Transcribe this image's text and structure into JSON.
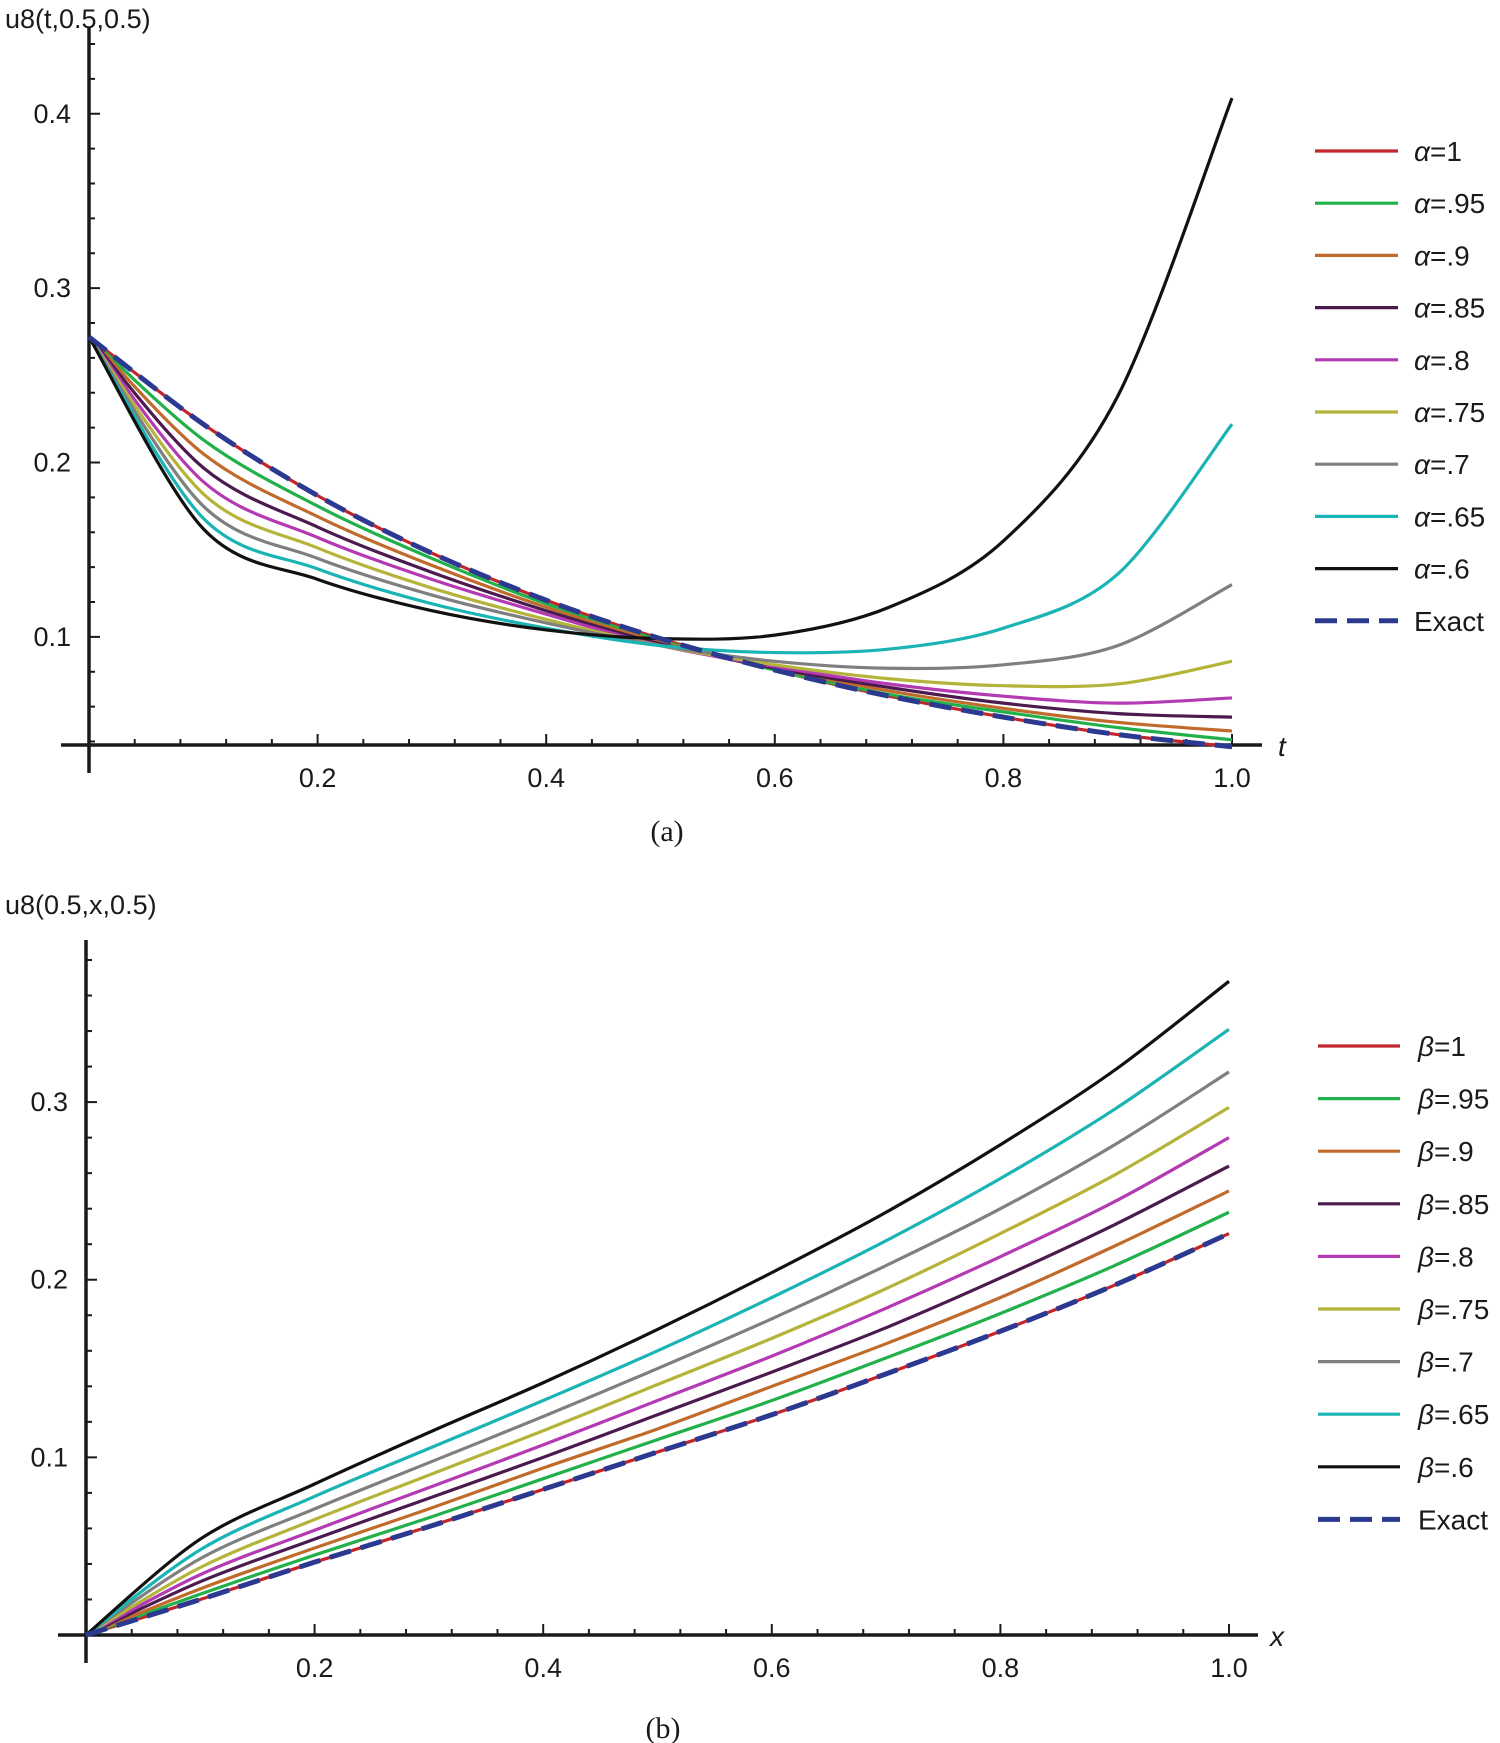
{
  "chart_data": [
    {
      "type": "line",
      "caption": "(a)",
      "ylabel": "u8(t,0.5,0.5)",
      "xlabel": "t",
      "xlim": [
        0,
        1.0
      ],
      "ylim": [
        0.038,
        0.44
      ],
      "xticks": [
        "0.2",
        "0.4",
        "0.6",
        "0.8",
        "1.0"
      ],
      "yticks": [
        "0.1",
        "0.2",
        "0.3",
        "0.4"
      ],
      "legend_position": "right",
      "x": [
        0,
        0.1,
        0.2,
        0.3,
        0.4,
        0.5,
        0.6,
        0.7,
        0.8,
        0.9,
        1.0
      ],
      "series": [
        {
          "name": "α=1",
          "color": "#c0272d",
          "dash": false,
          "values": [
            0.272,
            0.222,
            0.181,
            0.148,
            0.121,
            0.099,
            0.081,
            0.066,
            0.054,
            0.044,
            0.037
          ]
        },
        {
          "name": "α=.95",
          "color": "#22b04b",
          "dash": false,
          "values": [
            0.272,
            0.213,
            0.175,
            0.145,
            0.119,
            0.098,
            0.081,
            0.067,
            0.057,
            0.048,
            0.041
          ]
        },
        {
          "name": "α=.9",
          "color": "#c06a2b",
          "dash": false,
          "values": [
            0.272,
            0.205,
            0.169,
            0.141,
            0.117,
            0.097,
            0.082,
            0.069,
            0.059,
            0.051,
            0.046
          ]
        },
        {
          "name": "α=.85",
          "color": "#4b1a4f",
          "dash": false,
          "values": [
            0.272,
            0.197,
            0.163,
            0.137,
            0.115,
            0.096,
            0.082,
            0.071,
            0.062,
            0.056,
            0.054
          ]
        },
        {
          "name": "α=.8",
          "color": "#b33ab3",
          "dash": false,
          "values": [
            0.272,
            0.189,
            0.157,
            0.133,
            0.113,
            0.095,
            0.083,
            0.073,
            0.066,
            0.062,
            0.065
          ]
        },
        {
          "name": "α=.75",
          "color": "#b4b43a",
          "dash": false,
          "values": [
            0.272,
            0.182,
            0.151,
            0.128,
            0.11,
            0.095,
            0.084,
            0.076,
            0.072,
            0.073,
            0.086
          ]
        },
        {
          "name": "α=.7",
          "color": "#7f7f7f",
          "dash": false,
          "values": [
            0.272,
            0.175,
            0.145,
            0.124,
            0.108,
            0.095,
            0.086,
            0.082,
            0.084,
            0.095,
            0.13
          ]
        },
        {
          "name": "α=.65",
          "color": "#1ab4b4",
          "dash": false,
          "values": [
            0.272,
            0.168,
            0.139,
            0.119,
            0.105,
            0.095,
            0.091,
            0.093,
            0.105,
            0.136,
            0.222
          ]
        },
        {
          "name": "α=.6",
          "color": "#111111",
          "dash": false,
          "values": [
            0.272,
            0.162,
            0.133,
            0.115,
            0.104,
            0.099,
            0.101,
            0.117,
            0.155,
            0.238,
            0.409
          ]
        },
        {
          "name": "Exact",
          "color": "#2b3990",
          "dash": true,
          "values": [
            0.272,
            0.222,
            0.181,
            0.148,
            0.121,
            0.099,
            0.081,
            0.066,
            0.054,
            0.044,
            0.037
          ]
        }
      ]
    },
    {
      "type": "line",
      "caption": "(b)",
      "ylabel": "u8(0.5,x,0.5)",
      "xlabel": "x",
      "xlim": [
        0,
        1.0
      ],
      "ylim": [
        0,
        0.38
      ],
      "xticks": [
        "0.2",
        "0.4",
        "0.6",
        "0.8",
        "1.0"
      ],
      "yticks": [
        "0.1",
        "0.2",
        "0.3"
      ],
      "legend_position": "right",
      "x": [
        0,
        0.1,
        0.2,
        0.3,
        0.4,
        0.5,
        0.6,
        0.7,
        0.8,
        0.9,
        1.0
      ],
      "series": [
        {
          "name": "β=1",
          "color": "#c0272d",
          "dash": false,
          "values": [
            0,
            0.02,
            0.041,
            0.061,
            0.082,
            0.103,
            0.124,
            0.147,
            0.171,
            0.197,
            0.226
          ]
        },
        {
          "name": "β=.95",
          "color": "#22b04b",
          "dash": false,
          "values": [
            0,
            0.023,
            0.045,
            0.066,
            0.088,
            0.11,
            0.132,
            0.156,
            0.181,
            0.208,
            0.238
          ]
        },
        {
          "name": "β=.9",
          "color": "#c06a2b",
          "dash": false,
          "values": [
            0,
            0.026,
            0.049,
            0.071,
            0.094,
            0.116,
            0.14,
            0.164,
            0.19,
            0.219,
            0.25
          ]
        },
        {
          "name": "β=.85",
          "color": "#4b1a4f",
          "dash": false,
          "values": [
            0,
            0.03,
            0.054,
            0.077,
            0.1,
            0.124,
            0.148,
            0.173,
            0.201,
            0.231,
            0.264
          ]
        },
        {
          "name": "β=.8",
          "color": "#b33ab3",
          "dash": false,
          "values": [
            0,
            0.034,
            0.059,
            0.083,
            0.107,
            0.132,
            0.157,
            0.184,
            0.213,
            0.244,
            0.28
          ]
        },
        {
          "name": "β=.75",
          "color": "#b4b43a",
          "dash": false,
          "values": [
            0,
            0.038,
            0.065,
            0.09,
            0.115,
            0.141,
            0.167,
            0.195,
            0.226,
            0.259,
            0.297
          ]
        },
        {
          "name": "β=.7",
          "color": "#7f7f7f",
          "dash": false,
          "values": [
            0,
            0.043,
            0.071,
            0.097,
            0.123,
            0.15,
            0.178,
            0.208,
            0.24,
            0.276,
            0.317
          ]
        },
        {
          "name": "β=.65",
          "color": "#1ab4b4",
          "dash": false,
          "values": [
            0,
            0.048,
            0.078,
            0.105,
            0.132,
            0.16,
            0.19,
            0.222,
            0.257,
            0.296,
            0.341
          ]
        },
        {
          "name": "β=.6",
          "color": "#111111",
          "dash": false,
          "values": [
            0,
            0.054,
            0.085,
            0.114,
            0.142,
            0.172,
            0.204,
            0.238,
            0.276,
            0.318,
            0.368
          ]
        },
        {
          "name": "Exact",
          "color": "#2b3990",
          "dash": true,
          "values": [
            0,
            0.02,
            0.041,
            0.061,
            0.082,
            0.103,
            0.124,
            0.147,
            0.171,
            0.197,
            0.226
          ]
        }
      ]
    }
  ]
}
